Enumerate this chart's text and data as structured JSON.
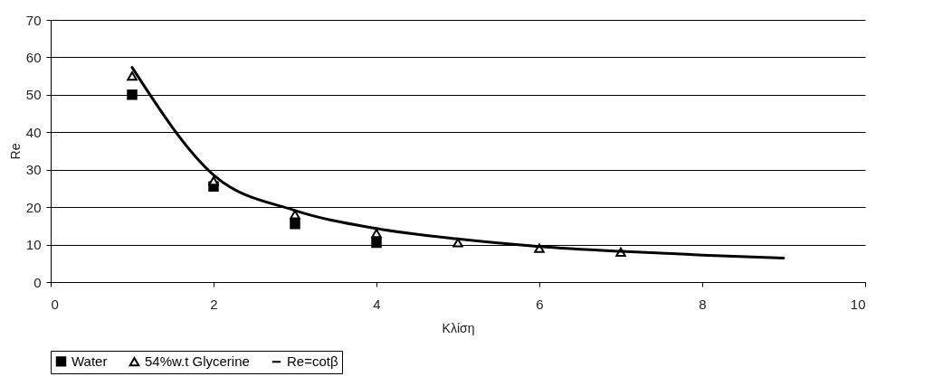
{
  "chart_data": {
    "type": "scatter",
    "xlabel": "Κλίση",
    "ylabel": "Re",
    "series": [
      {
        "name": "Water",
        "marker": "square",
        "color": "#000000",
        "x": [
          1,
          2,
          3,
          4
        ],
        "values": [
          50,
          25.5,
          15.5,
          10.5
        ]
      },
      {
        "name": "54%w.t Glycerine",
        "marker": "triangle",
        "color": "#000000",
        "x": [
          1,
          2,
          3,
          4,
          5,
          6,
          7
        ],
        "values": [
          55,
          27,
          18,
          13,
          10.5,
          9,
          8
        ]
      },
      {
        "name": "Re=cotβ",
        "type": "line",
        "color": "#000000",
        "x": [
          1,
          2,
          3,
          4,
          5,
          6,
          7,
          8,
          9
        ],
        "values": [
          57.3,
          28.6,
          19.1,
          14.3,
          11.5,
          9.5,
          8.2,
          7.2,
          6.4
        ]
      }
    ],
    "xlim": [
      0,
      10
    ],
    "xticks": [
      0,
      2,
      4,
      6,
      8,
      10
    ],
    "ylim": [
      0,
      70
    ],
    "yticks": [
      0,
      10,
      20,
      30,
      40,
      50,
      60,
      70
    ],
    "grid": "y",
    "legend": "bottom"
  }
}
